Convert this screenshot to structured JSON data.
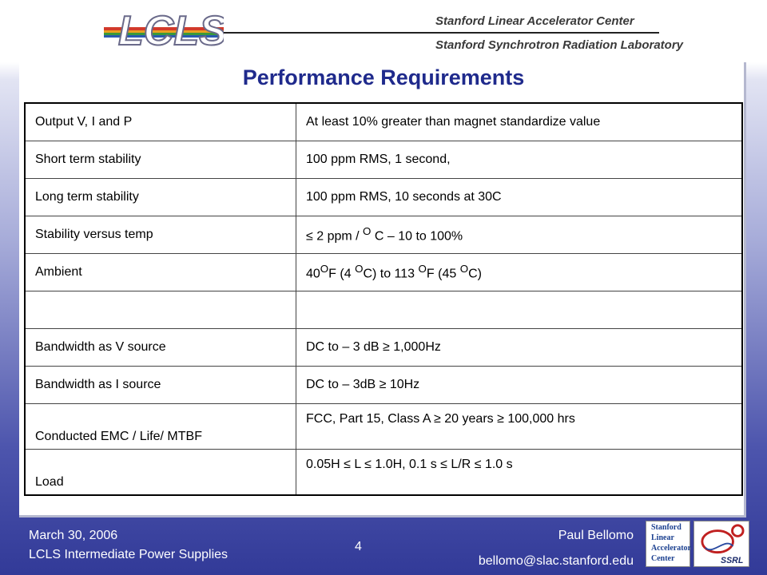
{
  "header": {
    "logo_text": "LCLS",
    "institution_1": "Stanford Linear Accelerator Center",
    "institution_2": "Stanford Synchrotron Radiation Laboratory"
  },
  "slide": {
    "title": "Performance Requirements",
    "rows": [
      {
        "label": "Output V, I and P",
        "value": "At least 10% greater than magnet standardize value"
      },
      {
        "label": "Short term stability",
        "value": "100 ppm RMS, 1 second,"
      },
      {
        "label": "Long term stability",
        "value": "100 ppm RMS, 10 seconds at 30C"
      },
      {
        "label": "Stability versus temp",
        "value_parts": [
          "≤ 2 ppm / ",
          "O",
          " C – 10 to 100%"
        ]
      },
      {
        "label": "Ambient",
        "value_parts": [
          "40",
          "O",
          "F (4 ",
          "O",
          "C) to 113 ",
          "O",
          "F (45 ",
          "O",
          "C)"
        ]
      },
      {
        "label": "",
        "value": ""
      },
      {
        "label": "Bandwidth as V source",
        "value": "DC to – 3 dB ≥ 1,000Hz"
      },
      {
        "label": "Bandwidth as I source",
        "value": "DC to – 3dB ≥ 10Hz"
      },
      {
        "label": "Conducted EMC / Life/ MTBF",
        "value": "FCC, Part 15, Class A   ≥ 20 years ≥ 100,000 hrs"
      },
      {
        "label": "Load",
        "value": "0.05H ≤ L ≤ 1.0H, 0.1 s ≤ L/R ≤  1.0 s"
      }
    ]
  },
  "footer": {
    "date": "March 30, 2006",
    "subject": "LCLS Intermediate Power Supplies",
    "page_number": "4",
    "author": "Paul Bellomo",
    "email": "bellomo@slac.stanford.edu",
    "slac_logo_lines": [
      "Stanford",
      "Linear",
      "Accelerator",
      "Center"
    ],
    "ssrl_logo_text": "SSRL"
  },
  "colors": {
    "title": "#1f2a8c",
    "background_bottom": "#323a98"
  }
}
